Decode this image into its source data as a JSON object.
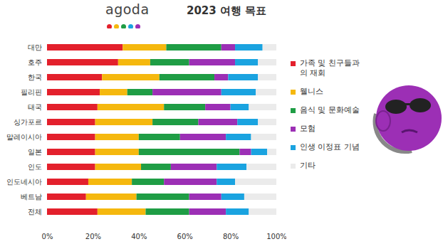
{
  "chart_data": {
    "type": "bar",
    "title": "2023 여행 목표",
    "annotations": [
      "agoda"
    ],
    "orientation": "horizontal",
    "stacked": true,
    "legend": "right",
    "grid": false,
    "categories": [
      "대만",
      "호주",
      "한국",
      "필리핀",
      "태국",
      "싱가포르",
      "말레이시아",
      "일본",
      "인도",
      "인도네시아",
      "베트남",
      "전체"
    ],
    "series": [
      {
        "name": "가족 및 친구들과의 재회",
        "color": "#e3202c",
        "values": [
          33,
          31,
          24,
          23,
          22,
          21,
          21,
          21,
          21,
          18,
          17,
          22
        ]
      },
      {
        "name": "웰니스",
        "color": "#f5b80e",
        "values": [
          19,
          14,
          25,
          12,
          29,
          25,
          19,
          19,
          20,
          19,
          22,
          21
        ]
      },
      {
        "name": "음식 및 문화예술",
        "color": "#1f9d45",
        "values": [
          24,
          17,
          24,
          11,
          18,
          20,
          18,
          44,
          13,
          14,
          23,
          19
        ]
      },
      {
        "name": "모험",
        "color": "#9c2fb5",
        "values": [
          6,
          20,
          6,
          30,
          11,
          17,
          20,
          5,
          20,
          23,
          14,
          16
        ]
      },
      {
        "name": "인생 이정표 기념",
        "color": "#1aa3e0",
        "values": [
          12,
          10,
          13,
          15,
          8,
          9,
          11,
          7,
          13,
          8,
          10,
          10
        ]
      },
      {
        "name": "기타",
        "color": "#ebebeb",
        "values": [
          6,
          8,
          8,
          9,
          12,
          8,
          11,
          4,
          13,
          18,
          14,
          12
        ]
      }
    ],
    "xlim": [
      0,
      100
    ],
    "xticks": [
      {
        "value": 0,
        "label": "0%"
      },
      {
        "value": 20,
        "label": "20%"
      },
      {
        "value": 40,
        "label": "40%"
      },
      {
        "value": 60,
        "label": "60%"
      },
      {
        "value": 80,
        "label": "80%"
      },
      {
        "value": 100,
        "label": "100%"
      }
    ]
  }
}
